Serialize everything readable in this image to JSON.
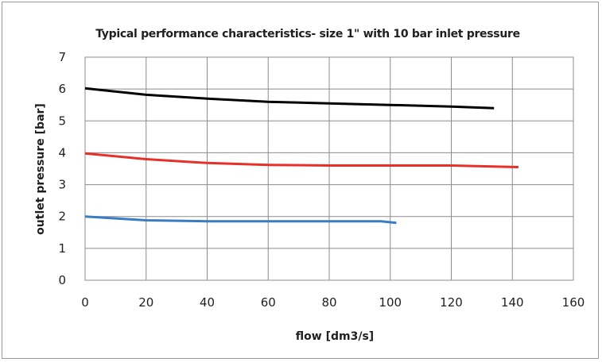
{
  "chart_data": {
    "type": "line",
    "title": "Typical performance characteristics- size 1\" with 10 bar inlet pressure",
    "xlabel": "flow [dm3/s]",
    "ylabel": "outlet pressure [bar]",
    "xlim": [
      0,
      160
    ],
    "ylim": [
      0,
      7
    ],
    "xticks": [
      "0",
      "20",
      "40",
      "60",
      "80",
      "100",
      "120",
      "140",
      "160"
    ],
    "yticks": [
      "0",
      "1",
      "2",
      "3",
      "4",
      "5",
      "6",
      "7"
    ],
    "grid": true,
    "legend": "none",
    "series": [
      {
        "color": "#000000",
        "points": [
          [
            0,
            6.02
          ],
          [
            20,
            5.82
          ],
          [
            40,
            5.7
          ],
          [
            60,
            5.6
          ],
          [
            80,
            5.55
          ],
          [
            100,
            5.5
          ],
          [
            120,
            5.45
          ],
          [
            134,
            5.4
          ]
        ]
      },
      {
        "color": "#e8302a",
        "points": [
          [
            0,
            3.98
          ],
          [
            20,
            3.8
          ],
          [
            40,
            3.68
          ],
          [
            60,
            3.62
          ],
          [
            80,
            3.6
          ],
          [
            100,
            3.6
          ],
          [
            120,
            3.6
          ],
          [
            142,
            3.55
          ]
        ]
      },
      {
        "color": "#3a7cc4",
        "points": [
          [
            0,
            2.0
          ],
          [
            20,
            1.88
          ],
          [
            40,
            1.85
          ],
          [
            60,
            1.85
          ],
          [
            80,
            1.85
          ],
          [
            97,
            1.85
          ],
          [
            102,
            1.8
          ]
        ]
      }
    ]
  }
}
